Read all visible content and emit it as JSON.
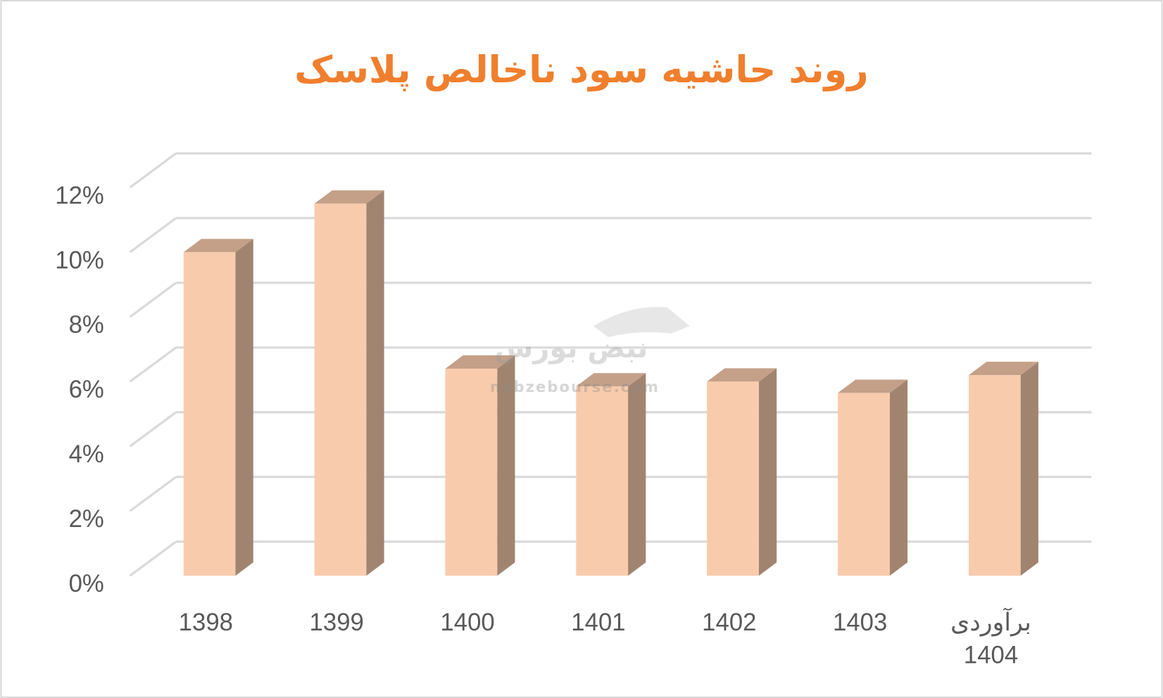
{
  "chart_data": {
    "type": "bar3d",
    "title": "روند حاشیه سود ناخالص پلاسک",
    "categories": [
      "1398",
      "1399",
      "1400",
      "1401",
      "1402",
      "1403",
      "برآوردی 1404"
    ],
    "values": [
      10.0,
      11.5,
      6.4,
      5.85,
      6.0,
      5.65,
      6.2
    ],
    "color": "#f8cbad",
    "ylim": [
      0,
      12
    ],
    "yticks": [
      {
        "value": 0,
        "label": "0%"
      },
      {
        "value": 2,
        "label": "2%"
      },
      {
        "value": 4,
        "label": "4%"
      },
      {
        "value": 6,
        "label": "6%"
      },
      {
        "value": 8,
        "label": "8%"
      },
      {
        "value": 10,
        "label": "10%"
      },
      {
        "value": 12,
        "label": "12%"
      }
    ],
    "grid": true,
    "watermark": [
      "نبض بورس",
      "nabzebourse.com"
    ]
  }
}
